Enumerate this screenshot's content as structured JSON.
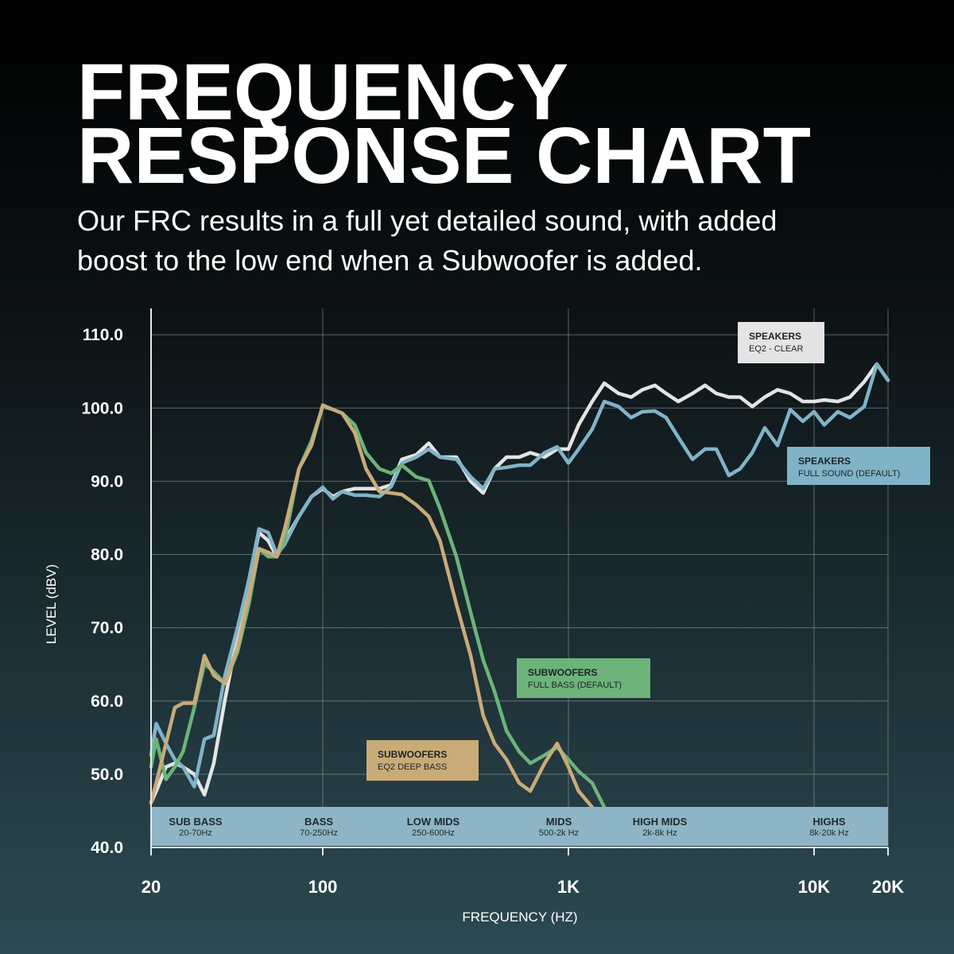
{
  "chart_data": {
    "type": "line",
    "title": [
      "FREQUENCY",
      "RESPONSE CHART"
    ],
    "subtitle": [
      "Our FRC results in a full yet detailed sound, with added",
      "boost to the low end when a Subwoofer is added."
    ],
    "x_label": "FREQUENCY (HZ)",
    "y_label": "LEVEL (dBV)",
    "x_log": true,
    "grid": true,
    "xlim": [
      20,
      20000
    ],
    "ylim": [
      40,
      113.6
    ],
    "xticks": [
      20,
      100,
      {
        "value": 1000,
        "label": "1K"
      },
      {
        "value": 10000,
        "label": "10K"
      },
      {
        "value": 20000,
        "label": "20K"
      }
    ],
    "yticks": [
      {
        "value": 40,
        "label": "40.0"
      },
      {
        "value": 50,
        "label": "50.0"
      },
      {
        "value": 60,
        "label": "60.0"
      },
      {
        "value": 70,
        "label": "70.0"
      },
      {
        "value": 80,
        "label": "80.0"
      },
      {
        "value": 90,
        "label": "90.0"
      },
      {
        "value": 100,
        "label": "100.0"
      },
      {
        "value": 110,
        "label": "110.0"
      }
    ],
    "x": [
      20,
      21,
      23,
      25,
      27,
      30,
      33,
      36,
      40,
      45,
      50,
      55,
      60,
      65,
      70,
      80,
      90,
      100,
      110,
      120,
      135,
      150,
      170,
      190,
      210,
      240,
      270,
      300,
      350,
      400,
      450,
      500,
      560,
      630,
      700,
      800,
      900,
      1000,
      1100,
      1250,
      1400,
      1600,
      1800,
      2000,
      2250,
      2500,
      2800,
      3200,
      3600,
      4000,
      4500,
      5000,
      5600,
      6300,
      7100,
      8000,
      9000,
      10000,
      11000,
      12500,
      14000,
      16000,
      18000,
      20000
    ],
    "series": [
      {
        "name": "SPEAKERS",
        "subname": "EQ2 - CLEAR",
        "color": "#e4e4e4",
        "values": [
          46.1,
          47.7,
          51,
          51.5,
          51,
          50,
          47.2,
          51.5,
          60.2,
          68.9,
          76.5,
          83,
          81.9,
          79.7,
          81.9,
          85.2,
          87.9,
          89,
          87.9,
          88.6,
          89,
          89,
          89,
          89.5,
          93,
          93.6,
          95.2,
          93.3,
          93.3,
          90,
          88.4,
          91.7,
          93.3,
          93.3,
          93.9,
          93.3,
          94.4,
          94.4,
          97.7,
          100.9,
          103.4,
          102,
          101.5,
          102.5,
          103.1,
          102,
          100.9,
          102,
          103.1,
          102,
          101.5,
          101.5,
          100.2,
          101.5,
          102.5,
          102,
          100.9,
          100.9,
          101.1,
          100.9,
          101.5,
          103.6,
          106,
          103.8
        ]
      },
      {
        "name": "SPEAKERS",
        "subname": "FULL SOUND (DEFAULT)",
        "color": "#80b3c7",
        "values": [
          52.6,
          56.9,
          54.2,
          52,
          51,
          48.3,
          54.8,
          55.3,
          63.5,
          70,
          76.5,
          83.5,
          83,
          80,
          81.4,
          85.2,
          87.9,
          89.2,
          87.6,
          88.6,
          88.1,
          88.1,
          87.9,
          89.3,
          92.5,
          93.3,
          94.4,
          93.3,
          93,
          90.6,
          89,
          91.7,
          91.9,
          92.2,
          92.2,
          93.9,
          94.7,
          92.5,
          94.4,
          97.1,
          100.9,
          100.2,
          98.7,
          99.5,
          99.6,
          98.7,
          96,
          93,
          94.4,
          94.4,
          90.8,
          91.7,
          93.9,
          97.3,
          94.9,
          99.8,
          98.2,
          99.5,
          97.7,
          99.5,
          98.7,
          100.2,
          106,
          103.8
        ]
      },
      {
        "name": "SUBWOOFERS",
        "subname": "FULL BASS (DEFAULT)",
        "color": "#6db37a",
        "values": [
          51,
          54.8,
          49.3,
          51,
          53.1,
          59.1,
          65.1,
          64,
          62.4,
          66.7,
          73.2,
          80.8,
          79.7,
          79.7,
          81.9,
          91.7,
          95.5,
          100.2,
          99.8,
          99.3,
          97.7,
          93.9,
          91.7,
          91.1,
          92.2,
          90.6,
          90.1,
          86.3,
          79.7,
          72.1,
          65.6,
          61.3,
          55.9,
          53.1,
          51.5,
          52.6,
          53.7,
          52,
          50.4,
          48.8,
          45.5,
          null,
          null,
          null,
          null,
          null,
          null,
          null,
          null,
          null,
          null,
          null,
          null,
          null,
          null,
          null,
          null,
          null,
          null,
          null,
          null,
          null,
          null,
          null
        ]
      },
      {
        "name": "SUBWOOFERS",
        "subname": "EQ2 DEEP BASS",
        "color": "#c9ab78",
        "values": [
          46.1,
          48.8,
          54.2,
          59.1,
          59.7,
          59.7,
          66.2,
          63.5,
          62.4,
          67.3,
          74.3,
          80.8,
          80.3,
          79.7,
          83.5,
          91.7,
          94.9,
          100.4,
          99.8,
          99.3,
          96.6,
          91.7,
          88.6,
          88.4,
          88.2,
          86.8,
          85.2,
          81.9,
          73.2,
          66.2,
          58,
          54.2,
          52,
          48.8,
          47.7,
          51.5,
          54.2,
          51,
          47.7,
          45.5,
          null,
          null,
          null,
          null,
          null,
          null,
          null,
          null,
          null,
          null,
          null,
          null,
          null,
          null,
          null,
          null,
          null,
          null,
          null,
          null,
          null,
          null,
          null,
          null
        ]
      }
    ],
    "band_color": "#8db5c5",
    "bands": [
      {
        "name": "SUB BASS",
        "range": "20-70Hz"
      },
      {
        "name": "BASS",
        "range": "70-250Hz"
      },
      {
        "name": "LOW MIDS",
        "range": "250-600Hz"
      },
      {
        "name": "MIDS",
        "range": "500-2k Hz"
      },
      {
        "name": "HIGH MIDS",
        "range": "2k-8k Hz"
      },
      {
        "name": "HIGHS",
        "range": "8k-20k Hz"
      }
    ]
  }
}
